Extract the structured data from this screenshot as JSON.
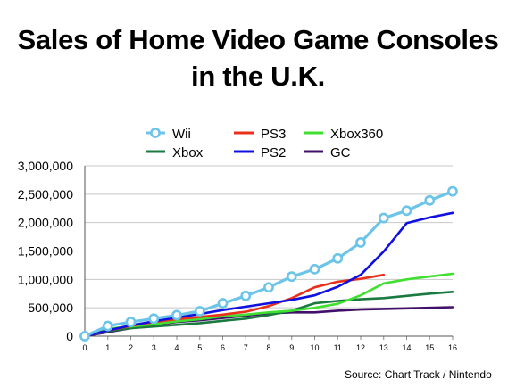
{
  "chart_data": {
    "type": "line",
    "title_line1": "Sales of Home Video Game Consoles",
    "title_line2": "in the U.K.",
    "source": "Source: Chart Track / Nintendo",
    "x": [
      0,
      1,
      2,
      3,
      4,
      5,
      6,
      7,
      8,
      9,
      10,
      11,
      12,
      13,
      14,
      15,
      16
    ],
    "x_ticks": [
      "0",
      "1",
      "2",
      "3",
      "4",
      "5",
      "6",
      "7",
      "8",
      "9",
      "10",
      "11",
      "12",
      "13",
      "14",
      "15",
      "16"
    ],
    "ylim": [
      0,
      3000000
    ],
    "y_ticks": [
      0,
      500000,
      1000000,
      1500000,
      2000000,
      2500000,
      3000000
    ],
    "y_tick_labels": [
      "0",
      "500,000",
      "1,000,000",
      "1,500,000",
      "2,000,000",
      "2,500,000",
      "3,000,000"
    ],
    "grid": "horizontal",
    "legend_placement": "top-center",
    "series": [
      {
        "name": "Wii",
        "color": "#6cc4e8",
        "markers": true,
        "values": [
          0,
          180000,
          250000,
          310000,
          370000,
          440000,
          580000,
          710000,
          860000,
          1050000,
          1180000,
          1370000,
          1650000,
          2080000,
          2210000,
          2390000,
          2550000
        ]
      },
      {
        "name": "PS3",
        "color": "#e8301c",
        "markers": false,
        "values": [
          0,
          100000,
          180000,
          250000,
          300000,
          340000,
          380000,
          430000,
          530000,
          670000,
          860000,
          960000,
          1010000,
          1080000,
          null,
          null,
          null
        ]
      },
      {
        "name": "Xbox360",
        "color": "#40e030",
        "markers": false,
        "values": [
          0,
          130000,
          170000,
          210000,
          260000,
          300000,
          350000,
          380000,
          420000,
          450000,
          500000,
          570000,
          720000,
          930000,
          1000000,
          1050000,
          1100000
        ]
      },
      {
        "name": "Xbox",
        "color": "#1a7a40",
        "markers": false,
        "values": [
          0,
          90000,
          140000,
          170000,
          200000,
          230000,
          270000,
          310000,
          370000,
          450000,
          580000,
          620000,
          650000,
          670000,
          710000,
          750000,
          780000
        ]
      },
      {
        "name": "PS2",
        "color": "#1010e0",
        "markers": false,
        "values": [
          0,
          100000,
          190000,
          260000,
          330000,
          390000,
          460000,
          520000,
          580000,
          640000,
          720000,
          870000,
          1080000,
          1490000,
          1990000,
          2090000,
          2170000
        ]
      },
      {
        "name": "GC",
        "color": "#40106a",
        "markers": false,
        "values": [
          0,
          70000,
          140000,
          200000,
          250000,
          280000,
          320000,
          360000,
          400000,
          420000,
          420000,
          450000,
          470000,
          480000,
          490000,
          500000,
          510000
        ]
      }
    ]
  }
}
